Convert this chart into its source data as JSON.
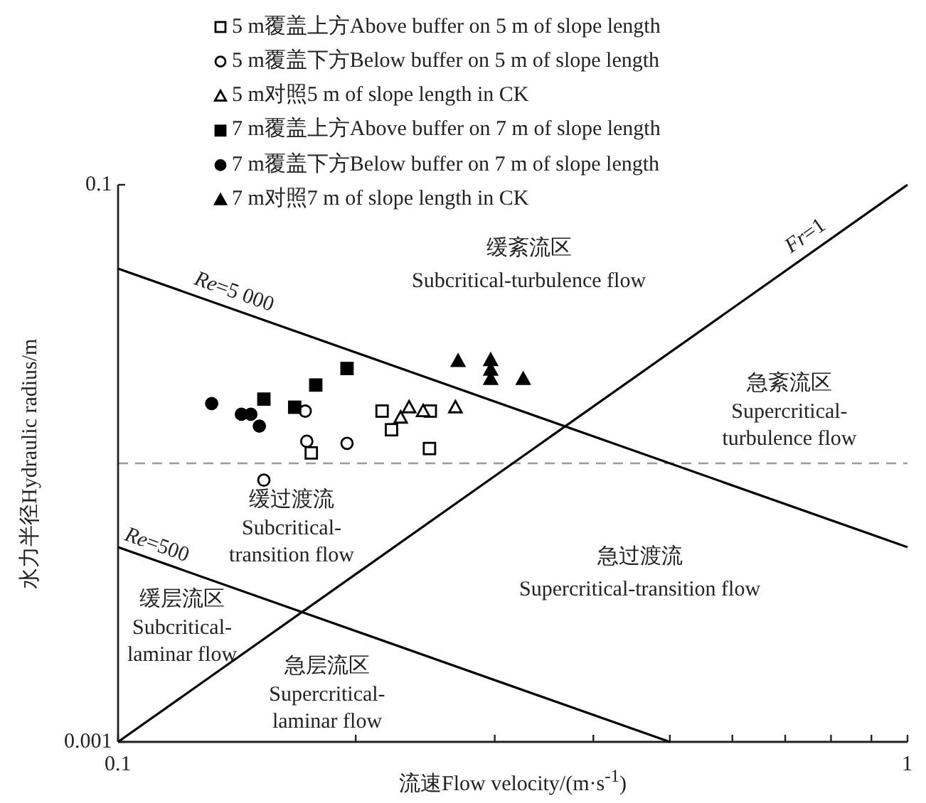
{
  "chart_data": {
    "type": "scatter",
    "log": "xy",
    "grid": false,
    "legend": "top",
    "xlabel": "流速Flow velocity/(m·s$^{-1}$)",
    "ylabel": "水力半径Hydraulic radius/m",
    "xlim": [
      0.1,
      1
    ],
    "ylim": [
      0.001,
      0.1
    ],
    "xticks": [
      0.1,
      {
        "value": 0.2,
        "label": null
      },
      {
        "value": 0.3,
        "label": null
      },
      {
        "value": 0.4,
        "label": null
      },
      {
        "value": 0.5,
        "label": null
      },
      {
        "value": 0.6,
        "label": null
      },
      {
        "value": 0.7,
        "label": null
      },
      {
        "value": 0.8,
        "label": null
      },
      {
        "value": 0.9,
        "label": null
      },
      1
    ],
    "yticks": [
      0.001,
      0.1
    ],
    "ref_lines": [
      {
        "axis": "y",
        "value": 0.01,
        "color": "#9a9a9a",
        "line_style": "dashed"
      }
    ],
    "series": [
      {
        "name": "5 m覆盖上方Above buffer on 5 m of slope length",
        "color": "#ffffff",
        "marker": "square",
        "x": [
          0.1757,
          0.216,
          0.222,
          0.2486,
          0.248
        ],
        "values": [
          0.0109,
          0.0154,
          0.0132,
          0.0154,
          0.0113
        ]
      },
      {
        "name": "5 m覆盖下方Below buffer on 5 m of slope length",
        "color": "#ffffff",
        "marker": "circle",
        "x": [
          0.1726,
          0.1734,
          0.195,
          0.153
        ],
        "values": [
          0.0154,
          0.012,
          0.0118,
          0.0087
        ]
      },
      {
        "name": "5 m对照5 m of slope length in CK",
        "color": "#ffffff",
        "marker": "triangle",
        "x": [
          0.2337,
          0.228,
          0.2435,
          0.2675
        ],
        "values": [
          0.0159,
          0.0146,
          0.0154,
          0.0159
        ]
      },
      {
        "name": "7 m覆盖上方Above buffer on 7 m of slope length",
        "color": "#000000",
        "marker": "square",
        "x": [
          0.153,
          0.1674,
          0.178,
          0.195
        ],
        "values": [
          0.017,
          0.0159,
          0.0191,
          0.0219
        ]
      },
      {
        "name": "7 m覆盖下方Below buffer on 7 m of slope length",
        "color": "#000000",
        "marker": "circle",
        "x": [
          0.1314,
          0.1433,
          0.1473,
          0.151
        ],
        "values": [
          0.0164,
          0.015,
          0.015,
          0.0136
        ]
      },
      {
        "name": "7 m对照7 m of slope length in CK",
        "color": "#000000",
        "marker": "triangle",
        "x": [
          0.2696,
          0.2965,
          0.2965,
          0.2965,
          0.326
        ],
        "values": [
          0.0233,
          0.0235,
          0.0217,
          0.0201,
          0.0201
        ]
      },
      {
        "name": "*Re*=5 000",
        "type": "line",
        "color": "#000000",
        "marker": "none",
        "x": [
          0.1,
          1
        ],
        "values": [
          0.05,
          0.005
        ]
      },
      {
        "name": "*Re*=500",
        "type": "line",
        "color": "#000000",
        "marker": "none",
        "x": [
          0.1,
          0.5
        ],
        "values": [
          0.005,
          0.001
        ]
      },
      {
        "name": "*Fr*=1",
        "type": "line",
        "color": "#000000",
        "marker": "none",
        "x": [
          0.1,
          1
        ],
        "values": [
          0.001,
          0.1
        ]
      }
    ],
    "annotations": [
      "缓紊流区",
      "Subcritical-turbulence flow",
      "急紊流区",
      "Supercritical-turbulence flow",
      "缓过渡流",
      "Subcritical-transition flow",
      "急过渡流",
      "Supercritical-transition flow",
      "缓层流区",
      "Subcritical-laminar flow",
      "急层流区",
      "Supercritical-laminar flow"
    ]
  }
}
